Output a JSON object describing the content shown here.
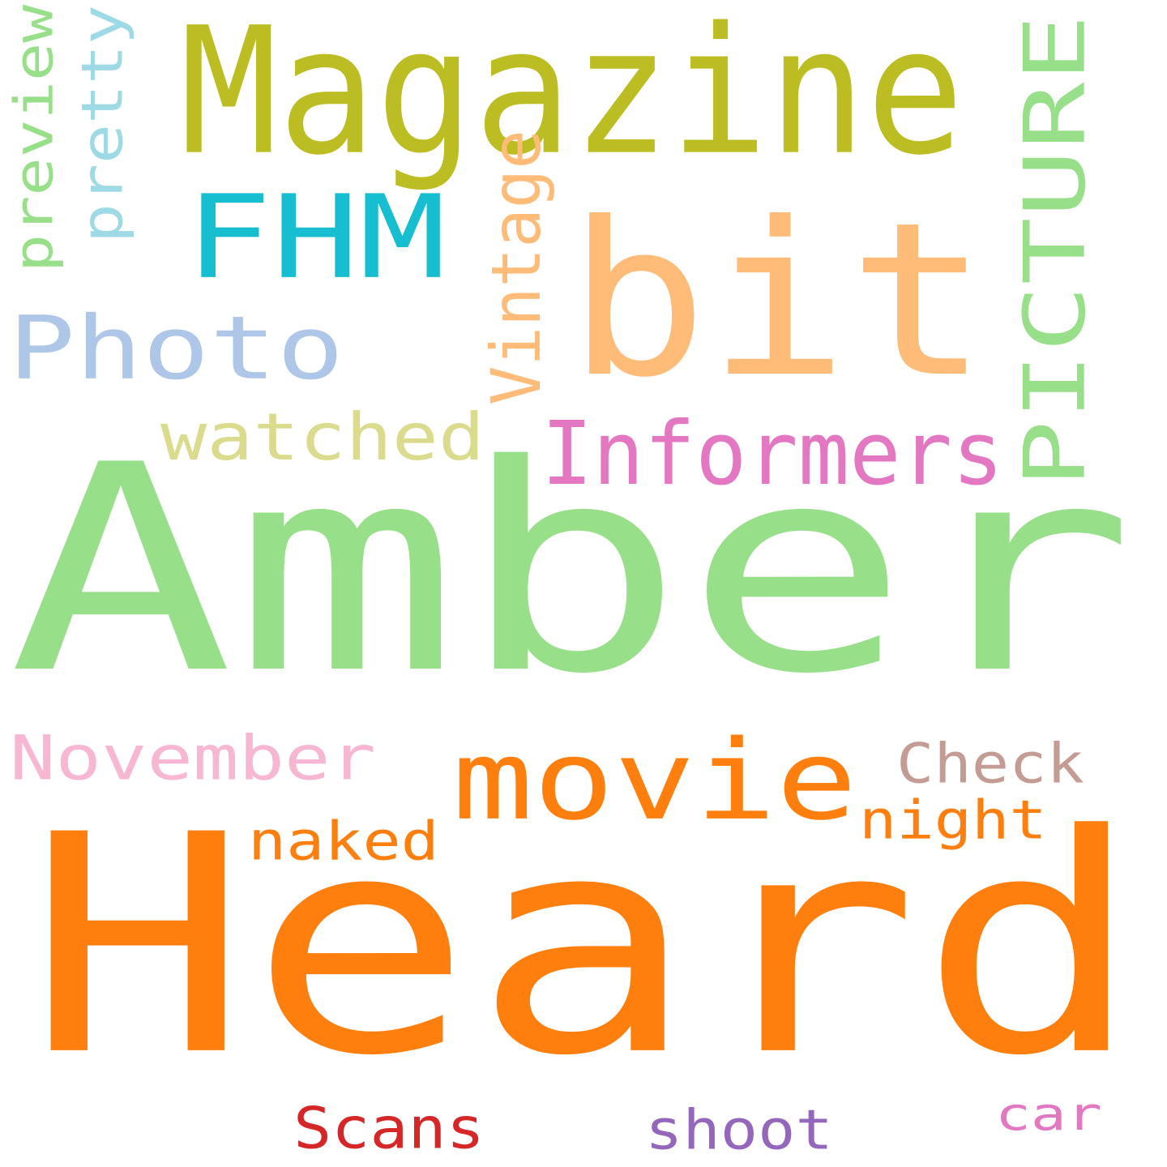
{
  "words": [
    {
      "key": "amber",
      "text": "Amber",
      "color": "#98df8a"
    },
    {
      "key": "heard",
      "text": "Heard",
      "color": "#ff7f0e"
    },
    {
      "key": "magazine",
      "text": "Magazine",
      "color": "#bcbd22"
    },
    {
      "key": "bit",
      "text": "bit",
      "color": "#ffbb78"
    },
    {
      "key": "fhm",
      "text": "FHM",
      "color": "#17becf"
    },
    {
      "key": "photo",
      "text": "Photo",
      "color": "#aec7e8"
    },
    {
      "key": "picture",
      "text": "PICTURE",
      "color": "#98df8a"
    },
    {
      "key": "informers",
      "text": "Informers",
      "color": "#e377c2"
    },
    {
      "key": "watched",
      "text": "watched",
      "color": "#dbdb8d"
    },
    {
      "key": "vintage",
      "text": "Vintage",
      "color": "#ffbb78"
    },
    {
      "key": "preview",
      "text": "preview",
      "color": "#98df8a"
    },
    {
      "key": "pretty",
      "text": "pretty",
      "color": "#9edae5"
    },
    {
      "key": "movie",
      "text": "movie",
      "color": "#ff7f0e"
    },
    {
      "key": "november",
      "text": "November",
      "color": "#f7b6d2"
    },
    {
      "key": "check",
      "text": "Check",
      "color": "#c49c94"
    },
    {
      "key": "night",
      "text": "night",
      "color": "#ff7f0e"
    },
    {
      "key": "naked",
      "text": "naked",
      "color": "#ff7f0e"
    },
    {
      "key": "scans",
      "text": "Scans",
      "color": "#d62728"
    },
    {
      "key": "shoot",
      "text": "shoot",
      "color": "#9467bd"
    },
    {
      "key": "car",
      "text": "car",
      "color": "#e377c2"
    }
  ]
}
